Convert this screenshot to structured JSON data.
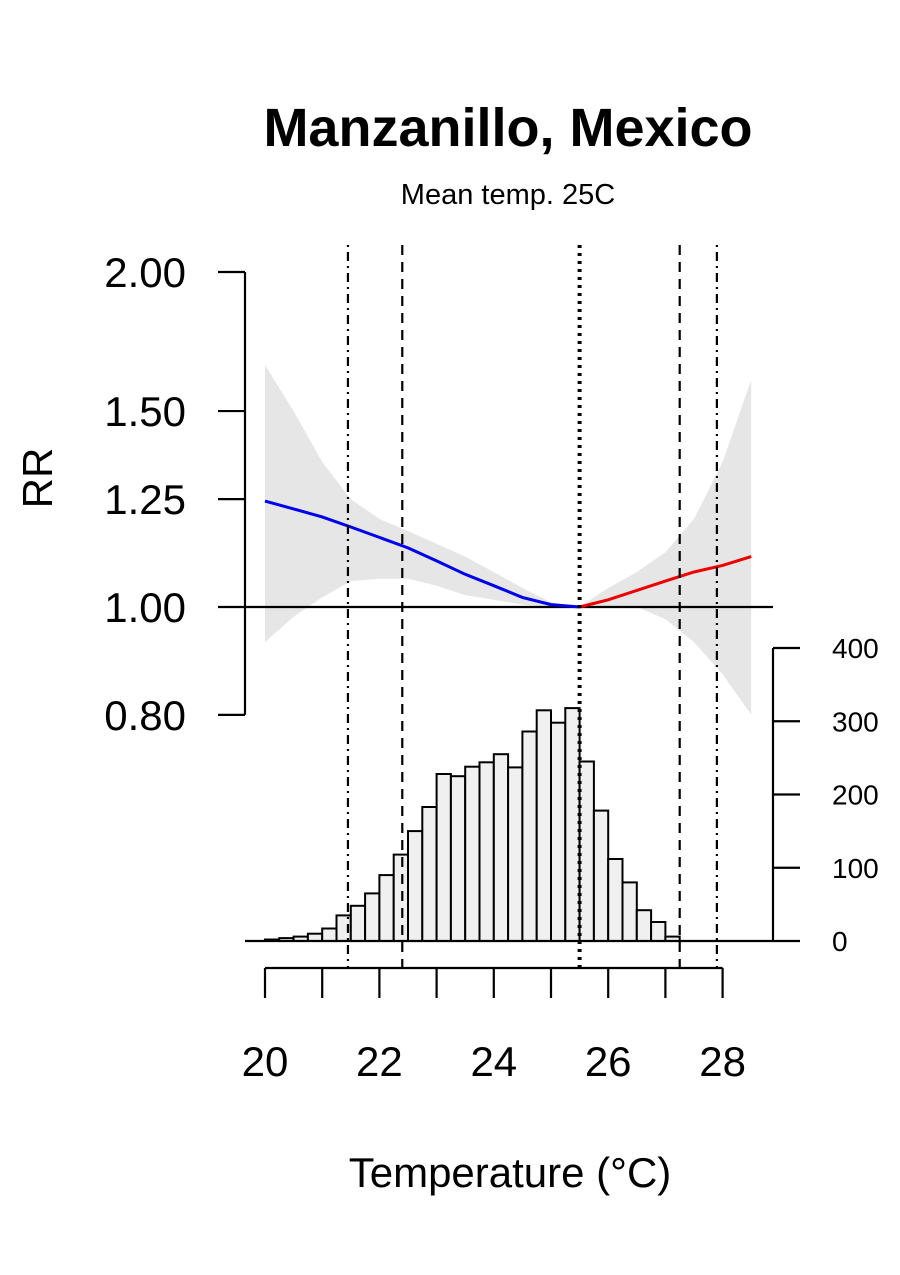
{
  "chart_data": {
    "type": "line",
    "title": "Manzanillo, Mexico",
    "subtitle": "Mean temp. 25C",
    "xlabel": "Temperature (°C)",
    "ylabel": "RR",
    "y_scale": "log",
    "xlim": [
      20,
      29
    ],
    "ylim": [
      0.8,
      2.0
    ],
    "x_ticks": [
      20,
      22,
      24,
      26,
      28
    ],
    "x_minor_ticks": [
      21,
      23,
      25,
      27
    ],
    "y_ticks": [
      0.8,
      1.0,
      1.25,
      1.5,
      2.0
    ],
    "y_tick_labels": [
      "0.80",
      "1.00",
      "1.25",
      "1.50",
      "2.00"
    ],
    "reference_rr": 1.0,
    "reference_lines": [
      {
        "x": 21.45,
        "style": "dotdash"
      },
      {
        "x": 22.4,
        "style": "dashed"
      },
      {
        "x": 25.5,
        "style": "dotted"
      },
      {
        "x": 27.25,
        "style": "dashed"
      },
      {
        "x": 27.9,
        "style": "dotdash"
      }
    ],
    "series": [
      {
        "part": "cold",
        "color": "#0000ee",
        "x": [
          20.0,
          20.5,
          21.0,
          21.5,
          22.0,
          22.5,
          23.0,
          23.5,
          24.0,
          24.5,
          25.0,
          25.5
        ],
        "y": [
          1.245,
          1.225,
          1.205,
          1.18,
          1.155,
          1.13,
          1.1,
          1.07,
          1.045,
          1.02,
          1.005,
          1.0
        ]
      },
      {
        "part": "heat",
        "color": "#ee0000",
        "x": [
          25.5,
          26.0,
          26.5,
          27.0,
          27.5,
          28.0,
          28.5
        ],
        "y": [
          1.0,
          1.015,
          1.035,
          1.055,
          1.075,
          1.09,
          1.11
        ]
      }
    ],
    "confidence_band": {
      "color": "#e6e6e6",
      "x": [
        20.0,
        20.5,
        21.0,
        21.5,
        22.0,
        22.5,
        23.0,
        23.5,
        24.0,
        24.5,
        25.0,
        25.5,
        26.0,
        26.5,
        27.0,
        27.5,
        28.0,
        28.5
      ],
      "lower": [
        0.93,
        0.98,
        1.02,
        1.055,
        1.06,
        1.06,
        1.045,
        1.025,
        1.015,
        1.005,
        1.0,
        1.0,
        1.0,
        1.0,
        0.975,
        0.93,
        0.87,
        0.8
      ],
      "upper": [
        1.65,
        1.5,
        1.35,
        1.25,
        1.2,
        1.17,
        1.14,
        1.11,
        1.075,
        1.04,
        1.01,
        1.0,
        1.04,
        1.075,
        1.12,
        1.2,
        1.35,
        1.6
      ]
    },
    "histogram": {
      "bin_width": 0.25,
      "start": 20.0,
      "counts": [
        2,
        4,
        6,
        10,
        17,
        35,
        48,
        65,
        90,
        118,
        150,
        183,
        228,
        225,
        238,
        244,
        255,
        237,
        286,
        315,
        298,
        318,
        245,
        178,
        112,
        80,
        42,
        26,
        6
      ],
      "y_ticks": [
        0,
        100,
        200,
        300,
        400
      ],
      "ylim": [
        0,
        400
      ],
      "fill": "#f0f0f0"
    }
  }
}
